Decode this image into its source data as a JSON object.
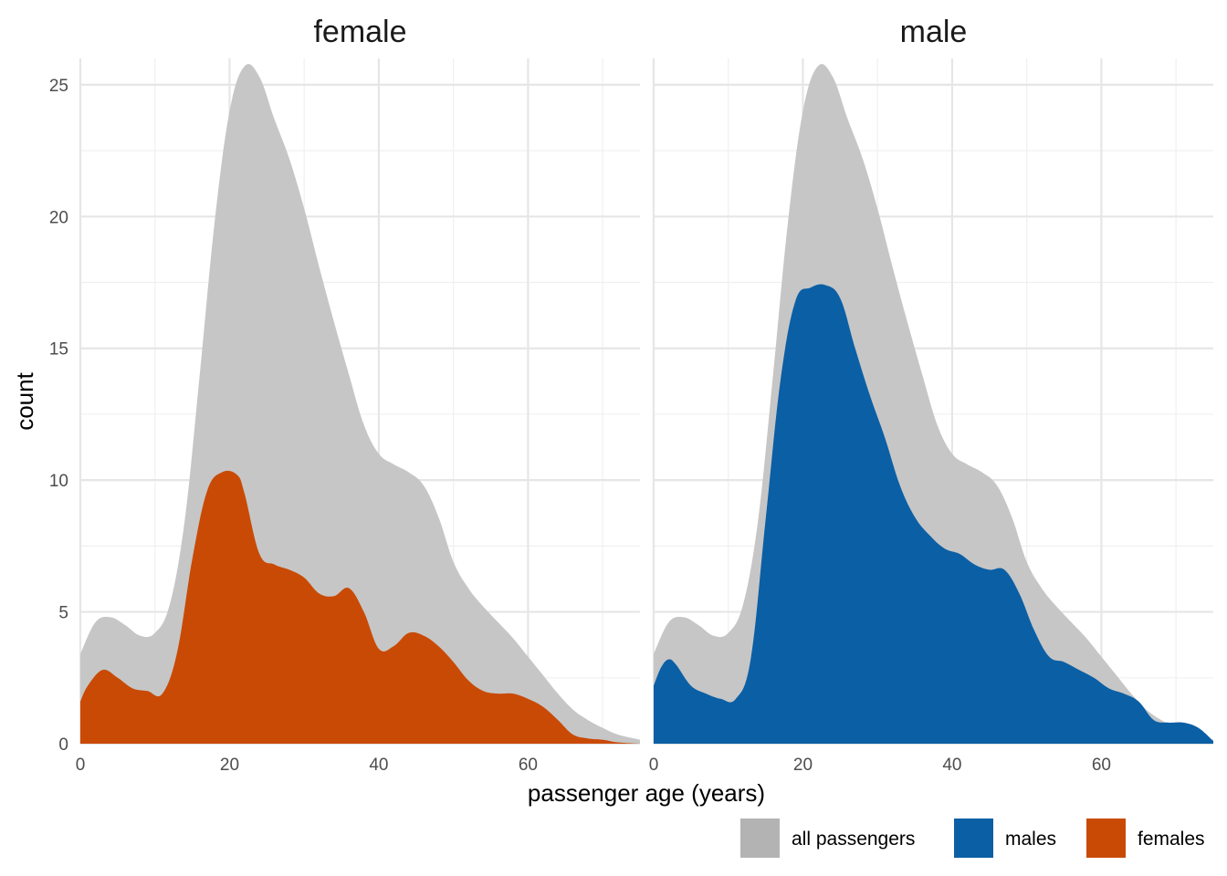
{
  "chart_data": {
    "type": "area",
    "xlabel": "passenger age (years)",
    "ylabel": "count",
    "xlim": [
      0,
      75
    ],
    "ylim": [
      0,
      26
    ],
    "x_ticks": [
      0,
      20,
      40,
      60
    ],
    "x_tick_labels": [
      "0",
      "20",
      "40",
      "60"
    ],
    "y_ticks": [
      0,
      5,
      10,
      15,
      20,
      25
    ],
    "y_tick_labels": [
      "0",
      "5",
      "10",
      "15",
      "20",
      "25"
    ],
    "grid": true,
    "legend_position": "bottom-right",
    "legend": [
      {
        "label": "all passengers",
        "color": "#b3b3b3"
      },
      {
        "label": "males",
        "color": "#0b5fa5"
      },
      {
        "label": "females",
        "color": "#c94a05"
      }
    ],
    "background_series": {
      "name": "all passengers",
      "color": "#c6c6c6",
      "x": [
        0,
        2,
        4,
        6,
        8,
        10,
        12,
        14,
        16,
        18,
        20,
        22,
        24,
        26,
        28,
        30,
        32,
        34,
        36,
        38,
        40,
        42,
        44,
        46,
        48,
        50,
        52,
        54,
        56,
        58,
        60,
        62,
        64,
        66,
        68,
        70,
        72,
        75
      ],
      "y": [
        3.4,
        4.6,
        4.8,
        4.5,
        4.1,
        4.2,
        5.3,
        8.5,
        14.0,
        19.8,
        24.0,
        25.7,
        25.3,
        23.7,
        22.2,
        20.3,
        18.1,
        16.0,
        14.0,
        12.1,
        11.0,
        10.6,
        10.3,
        9.8,
        8.6,
        6.9,
        5.9,
        5.2,
        4.6,
        4.0,
        3.3,
        2.6,
        1.9,
        1.3,
        0.9,
        0.6,
        0.35,
        0.15
      ]
    },
    "panels": [
      {
        "title": "female",
        "series": {
          "name": "females",
          "color": "#c94a05",
          "x": [
            0,
            1,
            3,
            5,
            7,
            9,
            11,
            13,
            15,
            17,
            19,
            21,
            22,
            24,
            26,
            28,
            30,
            32,
            34,
            36,
            38,
            40,
            42,
            44,
            46,
            48,
            50,
            52,
            54,
            56,
            58,
            60,
            62,
            64,
            66,
            68,
            70,
            72,
            75
          ],
          "y": [
            1.6,
            2.2,
            2.8,
            2.5,
            2.1,
            2.0,
            1.9,
            3.5,
            7.0,
            9.6,
            10.3,
            10.2,
            9.5,
            7.2,
            6.8,
            6.6,
            6.3,
            5.7,
            5.6,
            5.9,
            5.0,
            3.6,
            3.7,
            4.2,
            4.1,
            3.7,
            3.1,
            2.4,
            2.0,
            1.9,
            1.9,
            1.7,
            1.4,
            0.9,
            0.35,
            0.2,
            0.15,
            0.05,
            0.0
          ]
        }
      },
      {
        "title": "male",
        "series": {
          "name": "males",
          "color": "#0b5fa5",
          "x": [
            0,
            1,
            2,
            3,
            5,
            7,
            9,
            11,
            13,
            15,
            17,
            19,
            21,
            23,
            25,
            27,
            29,
            31,
            33,
            35,
            37,
            39,
            41,
            43,
            45,
            47,
            49,
            51,
            53,
            55,
            57,
            59,
            61,
            63,
            65,
            67,
            69,
            71,
            73,
            75
          ],
          "y": [
            2.2,
            2.9,
            3.2,
            3.0,
            2.2,
            1.9,
            1.7,
            1.7,
            3.2,
            8.5,
            13.8,
            16.8,
            17.3,
            17.4,
            16.9,
            15.0,
            13.2,
            11.6,
            9.8,
            8.6,
            7.9,
            7.4,
            7.2,
            6.8,
            6.6,
            6.6,
            5.7,
            4.3,
            3.3,
            3.1,
            2.8,
            2.5,
            2.1,
            1.9,
            1.6,
            0.9,
            0.8,
            0.8,
            0.6,
            0.1
          ]
        }
      }
    ]
  }
}
